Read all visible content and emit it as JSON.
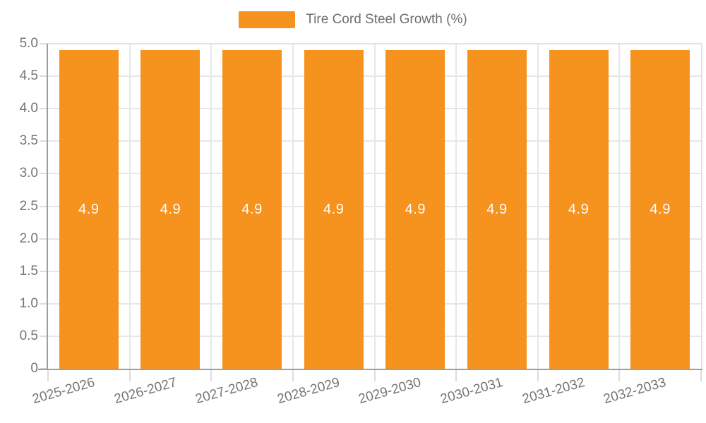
{
  "colors": {
    "bar": "#F6921E",
    "axis_line": "#9E9E9E",
    "grid_line": "#E7E7E7",
    "plot_border": "#E2E2E2",
    "tick": "#DCDCDC",
    "axis_text": "#757575",
    "legend_text": "#6E6E6E",
    "bar_label_text": "#FFFFFF"
  },
  "legend": {
    "label": "Tire Cord Steel Growth (%)"
  },
  "chart_data": {
    "type": "bar",
    "title": "",
    "legend": "Tire Cord Steel Growth (%)",
    "legend_position": "top",
    "categories": [
      "2025-2026",
      "2026-2027",
      "2027-2028",
      "2028-2029",
      "2029-2030",
      "2030-2031",
      "2031-2032",
      "2032-2033"
    ],
    "series": [
      {
        "name": "Tire Cord Steel Growth (%)",
        "values": [
          4.9,
          4.9,
          4.9,
          4.9,
          4.9,
          4.9,
          4.9,
          4.9
        ]
      }
    ],
    "bar_value_labels": [
      "4.9",
      "4.9",
      "4.9",
      "4.9",
      "4.9",
      "4.9",
      "4.9",
      "4.9"
    ],
    "xlabel": "",
    "ylabel": "",
    "ylim": [
      0,
      5
    ],
    "ytick_step": 0.5,
    "ytick_labels": [
      "0",
      "0.5",
      "1.0",
      "1.5",
      "2.0",
      "2.5",
      "3.0",
      "3.5",
      "4.0",
      "4.5",
      "5.0"
    ],
    "grid": true
  }
}
